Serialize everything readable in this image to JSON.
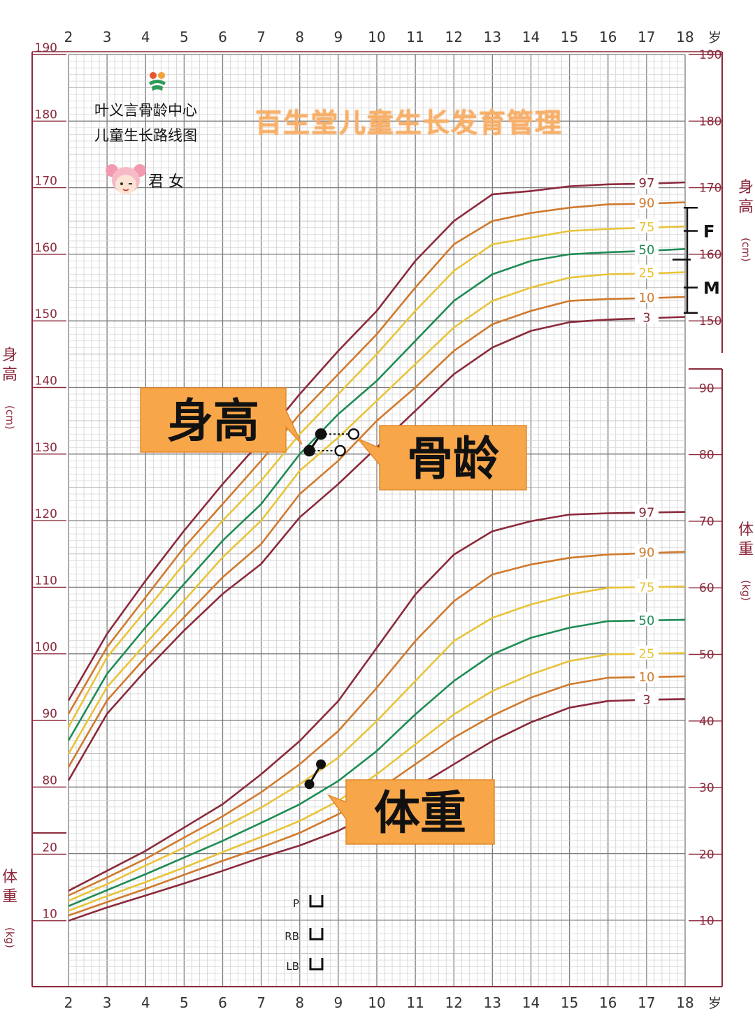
{
  "header": {
    "center_line1": "叶义言骨龄中心",
    "center_line2": "儿童生长路线图",
    "gender": "君 女",
    "slogan": "百生堂儿童生长发育管理"
  },
  "axis": {
    "age_ticks": [
      "2",
      "3",
      "4",
      "5",
      "6",
      "7",
      "8",
      "9",
      "10",
      "11",
      "12",
      "13",
      "14",
      "15",
      "16",
      "17",
      "18"
    ],
    "age_unit": "岁",
    "height_label": "身高",
    "height_unit": "(cm)",
    "weight_label": "体重",
    "weight_unit": "(kg)",
    "height_ticks_left": [
      "190",
      "180",
      "170",
      "160",
      "150",
      "140",
      "130",
      "120",
      "110",
      "100",
      "90",
      "80"
    ],
    "weight_ticks_left": [
      "20",
      "10"
    ],
    "height_ticks_right": [
      "190",
      "180",
      "170",
      "160",
      "150"
    ],
    "weight_ticks_right": [
      "90",
      "80",
      "70",
      "60",
      "50",
      "40",
      "30",
      "20",
      "10"
    ],
    "parent_marks": [
      "F",
      "M"
    ],
    "stage_labels": [
      "P",
      "RB",
      "LB"
    ]
  },
  "callouts": {
    "height": "身高",
    "bone_age": "骨龄",
    "weight": "体重"
  },
  "colors": {
    "p97": "#8b2a3c",
    "p90": "#d07a2e",
    "p75": "#e8c43a",
    "p50": "#1e8c55",
    "p25": "#e8c43a",
    "p10": "#d07a2e",
    "p3": "#8b2a3c",
    "frame": "#8b2a3c",
    "grid": "#b8b8b8",
    "callout_bg": "#f7a64a"
  },
  "chart_data": {
    "type": "line",
    "title": "儿童生长路线图",
    "xlabel": "岁",
    "xlim": [
      2,
      18
    ],
    "height_chart": {
      "ylabel": "身高(cm)",
      "ylim": [
        80,
        190
      ],
      "series": [
        {
          "name": "97",
          "x": [
            2,
            3,
            4,
            5,
            6,
            7,
            8,
            9,
            10,
            11,
            12,
            13,
            14,
            15,
            16,
            17,
            18
          ],
          "values": [
            93,
            103,
            111,
            118.5,
            125.5,
            132,
            139,
            145.5,
            151.5,
            159,
            165,
            169,
            169.5,
            170.2,
            170.5,
            170.6,
            170.8
          ]
        },
        {
          "name": "90",
          "x": [
            2,
            3,
            4,
            5,
            6,
            7,
            8,
            9,
            10,
            11,
            12,
            13,
            14,
            15,
            16,
            17,
            18
          ],
          "values": [
            91,
            101,
            108.5,
            116,
            122.5,
            129,
            136,
            142,
            148,
            155,
            161.5,
            165,
            166.2,
            167,
            167.5,
            167.6,
            167.8
          ]
        },
        {
          "name": "75",
          "x": [
            2,
            3,
            4,
            5,
            6,
            7,
            8,
            9,
            10,
            11,
            12,
            13,
            14,
            15,
            16,
            17,
            18
          ],
          "values": [
            89,
            99.5,
            106.5,
            113.5,
            120,
            126,
            133,
            139,
            145,
            151.5,
            157.5,
            161.5,
            162.5,
            163.5,
            163.8,
            164,
            164.2
          ]
        },
        {
          "name": "50",
          "x": [
            2,
            3,
            4,
            5,
            6,
            7,
            8,
            9,
            10,
            11,
            12,
            13,
            14,
            15,
            16,
            17,
            18
          ],
          "values": [
            87,
            97,
            104,
            110.5,
            117,
            122.5,
            130,
            136,
            141,
            147,
            153,
            157,
            159,
            160,
            160.3,
            160.5,
            160.8
          ]
        },
        {
          "name": "25",
          "x": [
            2,
            3,
            4,
            5,
            6,
            7,
            8,
            9,
            10,
            11,
            12,
            13,
            14,
            15,
            16,
            17,
            18
          ],
          "values": [
            85,
            95,
            101.5,
            108,
            114.5,
            120,
            127.5,
            132.5,
            138,
            143.5,
            149,
            153,
            155,
            156.5,
            157,
            157.1,
            157.3
          ]
        },
        {
          "name": "10",
          "x": [
            2,
            3,
            4,
            5,
            6,
            7,
            8,
            9,
            10,
            11,
            12,
            13,
            14,
            15,
            16,
            17,
            18
          ],
          "values": [
            83,
            93,
            99.5,
            105.5,
            111.5,
            116.5,
            124,
            129,
            135,
            140,
            145.5,
            149.5,
            151.5,
            153,
            153.3,
            153.4,
            153.6
          ]
        },
        {
          "name": "3",
          "x": [
            2,
            3,
            4,
            5,
            6,
            7,
            8,
            9,
            10,
            11,
            12,
            13,
            14,
            15,
            16,
            17,
            18
          ],
          "values": [
            81,
            91,
            97.5,
            103.5,
            109,
            113.5,
            120.5,
            125.5,
            131,
            136.5,
            142,
            146,
            148.5,
            149.8,
            150.2,
            150.4,
            150.6
          ]
        }
      ],
      "points": [
        {
          "label": "身高",
          "x": 8.25,
          "y": 130.5,
          "filled": true
        },
        {
          "label": "身高",
          "x": 8.55,
          "y": 133,
          "filled": true
        },
        {
          "label": "骨龄",
          "x": 9.05,
          "y": 130.5,
          "filled": false
        },
        {
          "label": "骨龄",
          "x": 9.4,
          "y": 133,
          "filled": false
        }
      ],
      "parent_range": {
        "F_top": 167,
        "F_mid": 163.5,
        "mid": 159.2,
        "M": 155,
        "bottom": 151.2
      }
    },
    "weight_chart": {
      "ylabel": "体重(kg)",
      "ylim": [
        0,
        90
      ],
      "series": [
        {
          "name": "97",
          "x": [
            2,
            3,
            4,
            5,
            6,
            7,
            8,
            9,
            10,
            11,
            12,
            13,
            14,
            15,
            16,
            17,
            18
          ],
          "values": [
            14.5,
            17.5,
            20.5,
            24,
            27.5,
            32,
            37,
            43,
            51,
            59,
            65,
            68.5,
            70,
            71,
            71.2,
            71.3,
            71.4
          ]
        },
        {
          "name": "90",
          "x": [
            2,
            3,
            4,
            5,
            6,
            7,
            8,
            9,
            10,
            11,
            12,
            13,
            14,
            15,
            16,
            17,
            18
          ],
          "values": [
            13.8,
            16.5,
            19.3,
            22.5,
            25.7,
            29.3,
            33.5,
            38.5,
            45,
            52,
            58,
            62,
            63.5,
            64.5,
            65,
            65.2,
            65.4
          ]
        },
        {
          "name": "75",
          "x": [
            2,
            3,
            4,
            5,
            6,
            7,
            8,
            9,
            10,
            11,
            12,
            13,
            14,
            15,
            16,
            17,
            18
          ],
          "values": [
            13,
            15.5,
            18.3,
            21,
            24,
            27,
            30.5,
            34.5,
            40,
            46,
            52,
            55.5,
            57.5,
            59,
            60,
            60.1,
            60.2
          ]
        },
        {
          "name": "50",
          "x": [
            2,
            3,
            4,
            5,
            6,
            7,
            8,
            9,
            10,
            11,
            12,
            13,
            14,
            15,
            16,
            17,
            18
          ],
          "values": [
            12.2,
            14.6,
            17,
            19.5,
            22,
            24.7,
            27.5,
            31,
            35.5,
            41,
            46,
            50,
            52.5,
            54,
            55,
            55.1,
            55.2
          ]
        },
        {
          "name": "25",
          "x": [
            2,
            3,
            4,
            5,
            6,
            7,
            8,
            9,
            10,
            11,
            12,
            13,
            14,
            15,
            16,
            17,
            18
          ],
          "values": [
            11.5,
            13.7,
            15.8,
            18,
            20.3,
            22.6,
            25,
            28,
            32,
            36.5,
            41,
            44.5,
            47,
            49,
            50,
            50.1,
            50.2
          ]
        },
        {
          "name": "10",
          "x": [
            2,
            3,
            4,
            5,
            6,
            7,
            8,
            9,
            10,
            11,
            12,
            13,
            14,
            15,
            16,
            17,
            18
          ],
          "values": [
            10.8,
            12.8,
            14.8,
            16.9,
            19,
            21,
            23.2,
            26,
            29.5,
            33.5,
            37.5,
            40.8,
            43.5,
            45.5,
            46.5,
            46.6,
            46.7
          ]
        },
        {
          "name": "3",
          "x": [
            2,
            3,
            4,
            5,
            6,
            7,
            8,
            9,
            10,
            11,
            12,
            13,
            14,
            15,
            16,
            17,
            18
          ],
          "values": [
            10,
            12,
            13.8,
            15.6,
            17.5,
            19.5,
            21.3,
            23.5,
            26.5,
            30,
            33.5,
            37,
            39.8,
            42,
            43,
            43.2,
            43.3
          ]
        }
      ],
      "points": [
        {
          "label": "体重",
          "x": 8.25,
          "y": 30.5,
          "filled": true
        },
        {
          "label": "体重",
          "x": 8.55,
          "y": 33.5,
          "filled": true
        }
      ]
    }
  }
}
